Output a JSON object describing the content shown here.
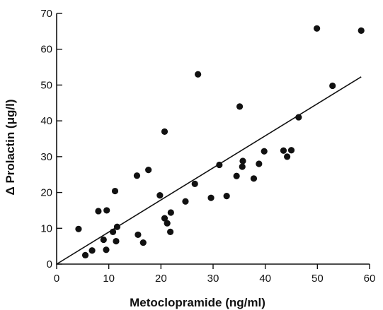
{
  "chart_data": {
    "type": "scatter",
    "title": "",
    "xlabel": "Metoclopramide (ng/ml)",
    "ylabel": "Δ Prolactin (μg/l)",
    "xlim": [
      0,
      60
    ],
    "ylim": [
      0,
      70
    ],
    "xticks": [
      0,
      10,
      20,
      30,
      40,
      50,
      60
    ],
    "yticks": [
      0,
      10,
      20,
      30,
      40,
      50,
      60,
      70
    ],
    "grid": false,
    "series": [
      {
        "points": [
          [
            4.2,
            9.8
          ],
          [
            5.5,
            2.5
          ],
          [
            6.8,
            3.8
          ],
          [
            8.0,
            14.8
          ],
          [
            9.0,
            6.8
          ],
          [
            9.5,
            4.0
          ],
          [
            9.6,
            15.0
          ],
          [
            10.8,
            9.0
          ],
          [
            11.2,
            20.4
          ],
          [
            11.4,
            6.4
          ],
          [
            11.6,
            10.4
          ],
          [
            15.4,
            24.7
          ],
          [
            15.6,
            8.2
          ],
          [
            16.6,
            6.0
          ],
          [
            17.6,
            26.3
          ],
          [
            19.8,
            19.2
          ],
          [
            20.7,
            12.8
          ],
          [
            20.7,
            37.0
          ],
          [
            21.2,
            11.4
          ],
          [
            21.8,
            9.0
          ],
          [
            21.9,
            14.4
          ],
          [
            24.7,
            17.5
          ],
          [
            26.5,
            22.4
          ],
          [
            27.1,
            53.0
          ],
          [
            29.6,
            18.5
          ],
          [
            31.2,
            27.7
          ],
          [
            32.6,
            19.0
          ],
          [
            34.5,
            24.6
          ],
          [
            35.1,
            44.0
          ],
          [
            35.6,
            27.2
          ],
          [
            35.7,
            28.8
          ],
          [
            37.8,
            23.9
          ],
          [
            38.8,
            28.0
          ],
          [
            39.8,
            31.5
          ],
          [
            43.5,
            31.7
          ],
          [
            44.2,
            30.0
          ],
          [
            45.0,
            31.8
          ],
          [
            46.4,
            41.0
          ],
          [
            49.9,
            65.8
          ],
          [
            52.9,
            49.8
          ],
          [
            58.4,
            65.2
          ]
        ]
      }
    ],
    "regression_line": {
      "x": [
        0,
        58.4
      ],
      "y": [
        0,
        52.3
      ]
    }
  }
}
